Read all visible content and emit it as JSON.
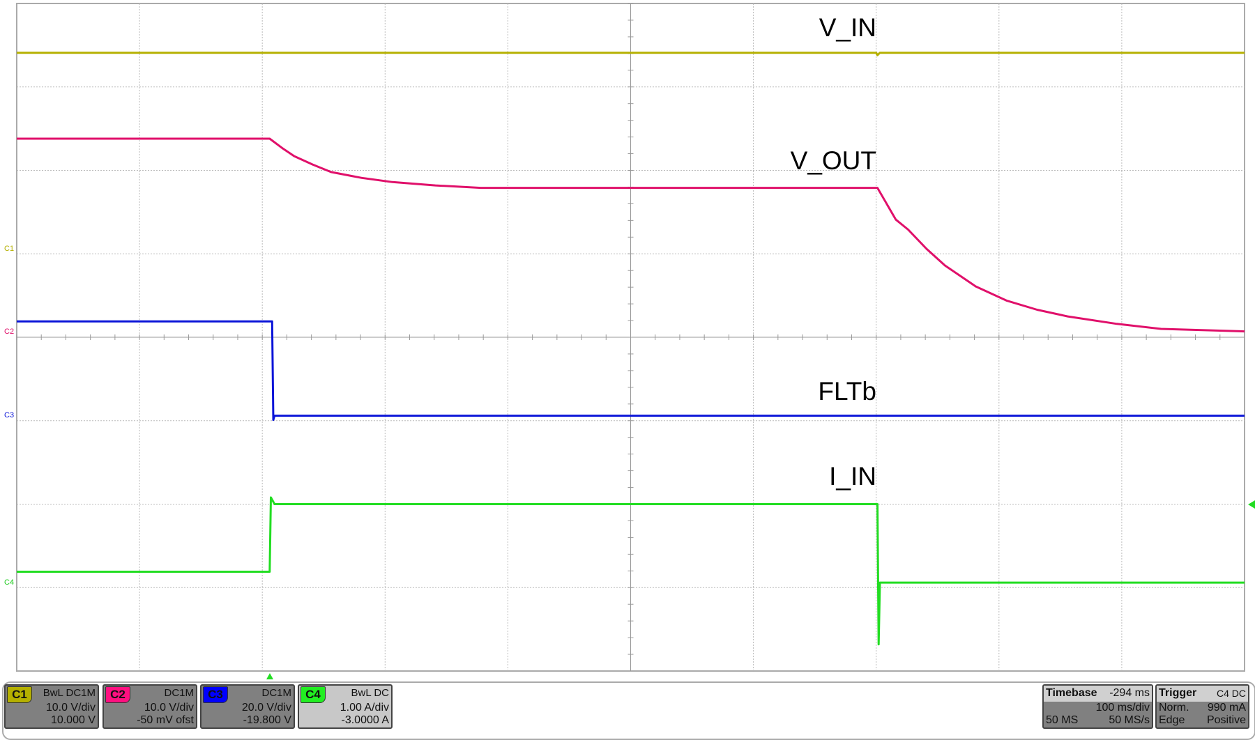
{
  "chart_data": {
    "type": "line",
    "title": "",
    "xlabel": "",
    "ylabel": "",
    "x_unit": "ms (relative to trigger)",
    "xlim": [
      -206,
      794
    ],
    "grid": true,
    "divisions": {
      "horizontal": 10,
      "vertical": 8
    },
    "series": [
      {
        "name": "V_IN",
        "channel": "C1",
        "unit": "V",
        "color": "#b5b000",
        "points": [
          [
            -206,
            23.5
          ],
          [
            494,
            23.5
          ],
          [
            495,
            23.2
          ],
          [
            497,
            23.5
          ],
          [
            794,
            23.5
          ]
        ]
      },
      {
        "name": "V_OUT",
        "channel": "C2",
        "unit": "V",
        "color": "#e0106a",
        "points": [
          [
            -206,
            23.1
          ],
          [
            0,
            23.1
          ],
          [
            10,
            22.0
          ],
          [
            20,
            21.0
          ],
          [
            35,
            20.0
          ],
          [
            50,
            19.1
          ],
          [
            75,
            18.4
          ],
          [
            100,
            17.9
          ],
          [
            135,
            17.5
          ],
          [
            172,
            17.2
          ],
          [
            495,
            17.2
          ],
          [
            510,
            13.4
          ],
          [
            520,
            12.2
          ],
          [
            535,
            9.9
          ],
          [
            550,
            7.9
          ],
          [
            575,
            5.4
          ],
          [
            600,
            3.7
          ],
          [
            625,
            2.6
          ],
          [
            650,
            1.8
          ],
          [
            690,
            0.9
          ],
          [
            726,
            0.3
          ],
          [
            794,
            0.0
          ]
        ]
      },
      {
        "name": "FLTb",
        "channel": "C3",
        "unit": "V",
        "color": "#0a14d8",
        "points": [
          [
            -206,
            22.6
          ],
          [
            2,
            22.6
          ],
          [
            3,
            -1.0
          ],
          [
            4,
            0.0
          ],
          [
            794,
            0.0
          ]
        ]
      },
      {
        "name": "I_IN",
        "channel": "C4",
        "unit": "A",
        "color": "#22dd22",
        "points": [
          [
            -206,
            0.13
          ],
          [
            0,
            0.13
          ],
          [
            1,
            1.02
          ],
          [
            4,
            0.94
          ],
          [
            495,
            0.94
          ],
          [
            496,
            -0.74
          ],
          [
            497,
            0.0
          ],
          [
            794,
            0.0
          ]
        ]
      }
    ],
    "trigger_level": 0.99
  },
  "channels": [
    {
      "id": "C1",
      "coupling": "BwL  DC1M",
      "scale": "10.0 V/div",
      "offset": "10.000 V",
      "color": "#b5b000",
      "tag_text": "#111"
    },
    {
      "id": "C2",
      "coupling": "DC1M",
      "scale": "10.0 V/div",
      "offset": "-50 mV ofst",
      "color": "#ff1080",
      "tag_text": "#111"
    },
    {
      "id": "C3",
      "coupling": "DC1M",
      "scale": "20.0 V/div",
      "offset": "-19.800 V",
      "color": "#0000ff",
      "tag_text": "#111"
    },
    {
      "id": "C4",
      "coupling": "BwL  DC",
      "scale": "1.00 A/div",
      "offset": "-3.0000 A",
      "color": "#22ee22",
      "tag_text": "#111"
    }
  ],
  "timebase": {
    "label": "Timebase",
    "delay": "-294 ms",
    "scale": "100 ms/div",
    "points": "50 MS",
    "rate": "50 MS/s"
  },
  "trigger": {
    "label": "Trigger",
    "source": "C4  DC",
    "mode": "Norm.",
    "level": "990 mA",
    "type": "Edge",
    "slope": "Positive"
  }
}
